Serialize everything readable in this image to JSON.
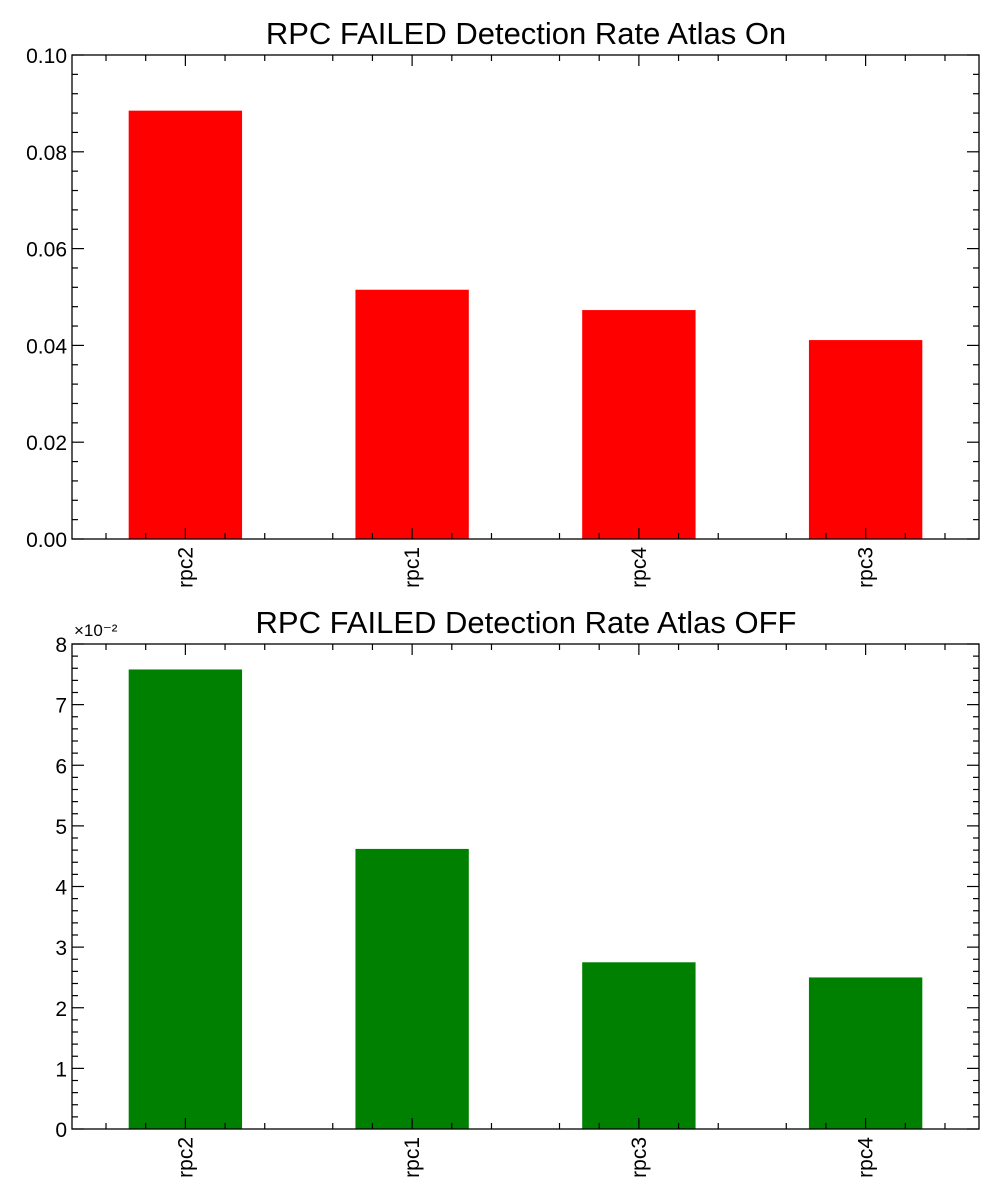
{
  "chart_data": [
    {
      "type": "bar",
      "title": "RPC FAILED Detection Rate Atlas On",
      "categories": [
        "rpc2",
        "rpc1",
        "rpc4",
        "rpc3"
      ],
      "values": [
        0.0885,
        0.0515,
        0.0473,
        0.0411
      ],
      "ylim": [
        0,
        0.1
      ],
      "yticks": [
        0,
        0.02,
        0.04,
        0.06,
        0.08,
        0.1
      ],
      "ytick_labels": [
        "0.00",
        "0.02",
        "0.04",
        "0.06",
        "0.08",
        "0.10"
      ],
      "y_multiplier_label": "",
      "color": "#ff0000",
      "xlabel": "",
      "ylabel": "",
      "grid": false
    },
    {
      "type": "bar",
      "title": "RPC FAILED Detection Rate Atlas OFF",
      "categories": [
        "rpc2",
        "rpc1",
        "rpc3",
        "rpc4"
      ],
      "values": [
        0.0758,
        0.0462,
        0.0275,
        0.025
      ],
      "ylim": [
        0,
        0.08
      ],
      "yticks": [
        0,
        0.01,
        0.02,
        0.03,
        0.04,
        0.05,
        0.06,
        0.07,
        0.08
      ],
      "ytick_labels": [
        "0",
        "1",
        "2",
        "3",
        "4",
        "5",
        "6",
        "7",
        "8"
      ],
      "y_multiplier_label": "×10⁻²",
      "color": "#008000",
      "xlabel": "",
      "ylabel": "",
      "grid": false
    }
  ]
}
